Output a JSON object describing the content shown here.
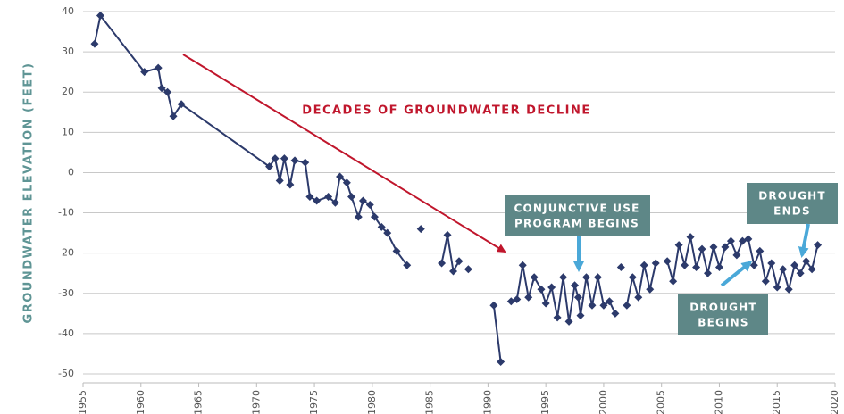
{
  "chart_data": {
    "type": "line",
    "y_label": "GROUNDWATER ELEVATION (FEET)",
    "xlim": [
      1955,
      2020
    ],
    "xticks": [
      1955,
      1960,
      1965,
      1970,
      1975,
      1980,
      1985,
      1990,
      1995,
      2000,
      2005,
      2010,
      2015,
      2020
    ],
    "ylim": [
      -50,
      40
    ],
    "yticks": [
      40,
      30,
      20,
      10,
      0,
      -10,
      -20,
      -30,
      -40,
      -50
    ],
    "grid": true,
    "series": [
      {
        "color": "#2c3a6b",
        "x": [
          1956.0,
          1956.5,
          1960.3,
          1961.5,
          1961.8,
          1962.3,
          1962.8,
          1963.5,
          1971.1,
          1971.6,
          1972.0,
          1972.4,
          1972.9,
          1973.3,
          1974.2,
          1974.6,
          1975.2,
          1976.2,
          1976.8,
          1977.2,
          1977.8,
          1978.2,
          1978.8,
          1979.2,
          1979.8,
          1980.2,
          1980.8,
          1981.3,
          1982.1,
          1983.0,
          null,
          1984.2,
          null,
          1986.0,
          1986.5,
          1987.0,
          1987.5,
          null,
          1988.3,
          null,
          1990.5,
          1991.1,
          null,
          1992.0,
          1992.5,
          1993.0,
          1993.5,
          1994.0,
          1994.6,
          1995.0,
          1995.5,
          1996.0,
          1996.5,
          1997.0,
          1997.5,
          1997.8,
          1998.0,
          1998.5,
          1999.0,
          1999.5,
          2000.0,
          2000.5,
          2001.0,
          null,
          2001.5,
          null,
          2002.0,
          2002.5,
          2003.0,
          2003.5,
          2004.0,
          2004.5,
          null,
          2005.5,
          2006.0,
          2006.5,
          2007.0,
          2007.5,
          2008.0,
          2008.5,
          2009.0,
          2009.5,
          2010.0,
          2010.5,
          2011.0,
          2011.5,
          2012.0,
          2012.5,
          2013.0,
          2013.5,
          2014.0,
          2014.5,
          2015.0,
          2015.5,
          2016.0,
          2016.5,
          2017.0,
          2017.5,
          2018.0,
          2018.5
        ],
        "values": [
          32,
          39,
          25,
          26,
          21,
          20,
          14,
          17,
          1.5,
          3.5,
          -2,
          3.5,
          -3,
          3,
          2.5,
          -6,
          -7,
          -6,
          -7.5,
          -1,
          -2.5,
          -6,
          -11,
          -7,
          -8,
          -11,
          -13.5,
          -15,
          -19.5,
          -23,
          null,
          -14,
          null,
          -22.5,
          -15.5,
          -24.5,
          -22,
          null,
          -24,
          null,
          -33,
          -47,
          null,
          -32,
          -31.5,
          -23,
          -31,
          -26,
          -29,
          -32.5,
          -28.5,
          -36,
          -26,
          -37,
          -28,
          -31,
          -35.5,
          -26,
          -33,
          -26,
          -33,
          -32,
          -35,
          null,
          -23.5,
          null,
          -33,
          -26,
          -31,
          -23,
          -29,
          -22.5,
          null,
          -22,
          -27,
          -18,
          -23,
          -16,
          -23.5,
          -19,
          -25,
          -18.5,
          -23.5,
          -18.5,
          -17,
          -20.5,
          -17,
          -16.5,
          -23,
          -19.5,
          -27,
          -22.5,
          -28.5,
          -24,
          -29,
          -23,
          -25,
          -22,
          -24,
          -18
        ]
      }
    ],
    "annotations": [
      {
        "lines": [
          "DECADES OF GROUNDWATER DECLINE"
        ]
      },
      {
        "lines": [
          "CONJUNCTIVE USE",
          "PROGRAM BEGINS"
        ]
      },
      {
        "lines": [
          "DROUGHT",
          "BEGINS"
        ]
      },
      {
        "lines": [
          "DROUGHT",
          "ENDS"
        ]
      }
    ]
  }
}
